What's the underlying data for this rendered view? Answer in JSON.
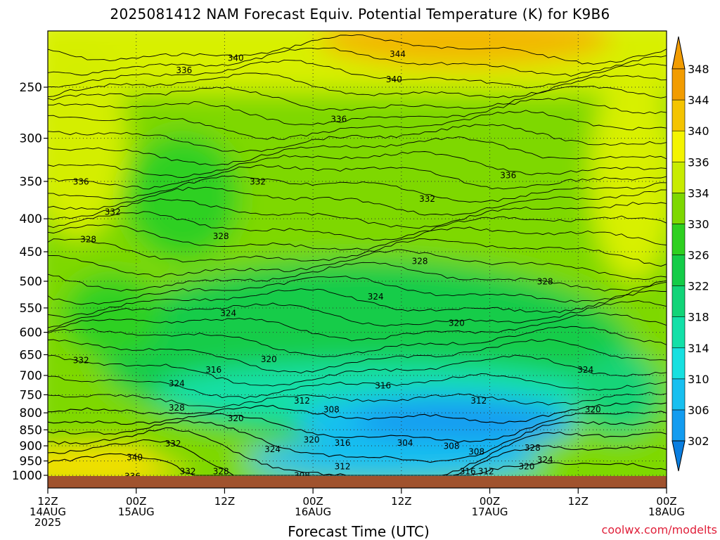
{
  "title": "2025081412 NAM Forecast Equiv. Potential Temperature (K) for K9B6",
  "credit": "coolwx.com/modelts",
  "chart_data": {
    "type": "heatmap",
    "title": "2025081412 NAM Forecast Equiv. Potential Temperature (K) for K9B6",
    "xlabel": "Forecast Time (UTC)",
    "ylabel": "",
    "x_ticks": [
      {
        "hours": 0,
        "line1": "12Z",
        "line2": "14AUG",
        "line3": "2025"
      },
      {
        "hours": 12,
        "line1": "00Z",
        "line2": "15AUG",
        "line3": ""
      },
      {
        "hours": 24,
        "line1": "12Z",
        "line2": "",
        "line3": ""
      },
      {
        "hours": 36,
        "line1": "00Z",
        "line2": "16AUG",
        "line3": ""
      },
      {
        "hours": 48,
        "line1": "12Z",
        "line2": "",
        "line3": ""
      },
      {
        "hours": 60,
        "line1": "00Z",
        "line2": "17AUG",
        "line3": ""
      },
      {
        "hours": 72,
        "line1": "12Z",
        "line2": "",
        "line3": ""
      },
      {
        "hours": 84,
        "line1": "00Z",
        "line2": "18AUG",
        "line3": ""
      }
    ],
    "xlim": [
      0,
      84
    ],
    "y_ticks": [
      250,
      300,
      350,
      400,
      450,
      500,
      550,
      600,
      650,
      700,
      750,
      800,
      850,
      900,
      950,
      1000
    ],
    "ylim": [
      200,
      1010
    ],
    "y_scale": "log-pressure (inverted)",
    "grid": true,
    "colorbar": {
      "levels": [
        302,
        306,
        310,
        314,
        318,
        322,
        326,
        330,
        334,
        336,
        340,
        344,
        348
      ],
      "colors": [
        "#0a7ee0",
        "#139cf0",
        "#18c0f0",
        "#17e0e0",
        "#13e0a8",
        "#12d478",
        "#14cc48",
        "#2ed020",
        "#7ed800",
        "#c8ec00",
        "#f4f400",
        "#f4c400",
        "#f29c00"
      ]
    },
    "contour_labels": [
      {
        "value": "340",
        "hours": 25.5,
        "p": 225
      },
      {
        "value": "344",
        "hours": 47.5,
        "p": 222
      },
      {
        "value": "336",
        "hours": 18.5,
        "p": 235
      },
      {
        "value": "340",
        "hours": 47.0,
        "p": 243
      },
      {
        "value": "336",
        "hours": 39.5,
        "p": 280
      },
      {
        "value": "336",
        "hours": 4.5,
        "p": 350
      },
      {
        "value": "332",
        "hours": 28.5,
        "p": 350
      },
      {
        "value": "336",
        "hours": 62.5,
        "p": 342
      },
      {
        "value": "332",
        "hours": 51.5,
        "p": 372
      },
      {
        "value": "332",
        "hours": 8.8,
        "p": 390
      },
      {
        "value": "328",
        "hours": 5.5,
        "p": 430
      },
      {
        "value": "328",
        "hours": 23.5,
        "p": 425
      },
      {
        "value": "328",
        "hours": 50.5,
        "p": 465
      },
      {
        "value": "328",
        "hours": 67.5,
        "p": 500
      },
      {
        "value": "324",
        "hours": 44.5,
        "p": 528
      },
      {
        "value": "324",
        "hours": 24.5,
        "p": 560
      },
      {
        "value": "320",
        "hours": 55.5,
        "p": 580
      },
      {
        "value": "332",
        "hours": 4.5,
        "p": 662
      },
      {
        "value": "320",
        "hours": 30.0,
        "p": 660
      },
      {
        "value": "316",
        "hours": 22.5,
        "p": 685
      },
      {
        "value": "324",
        "hours": 17.5,
        "p": 720
      },
      {
        "value": "316",
        "hours": 45.5,
        "p": 725
      },
      {
        "value": "324",
        "hours": 73.0,
        "p": 685
      },
      {
        "value": "312",
        "hours": 34.5,
        "p": 765
      },
      {
        "value": "312",
        "hours": 58.5,
        "p": 765
      },
      {
        "value": "328",
        "hours": 17.5,
        "p": 785
      },
      {
        "value": "308",
        "hours": 38.5,
        "p": 790
      },
      {
        "value": "320",
        "hours": 74.0,
        "p": 790
      },
      {
        "value": "320",
        "hours": 25.5,
        "p": 815
      },
      {
        "value": "320",
        "hours": 35.8,
        "p": 880
      },
      {
        "value": "316",
        "hours": 40.0,
        "p": 890
      },
      {
        "value": "304",
        "hours": 48.5,
        "p": 890
      },
      {
        "value": "308",
        "hours": 54.8,
        "p": 900
      },
      {
        "value": "332",
        "hours": 17.0,
        "p": 892
      },
      {
        "value": "324",
        "hours": 30.5,
        "p": 910
      },
      {
        "value": "328",
        "hours": 65.8,
        "p": 905
      },
      {
        "value": "308",
        "hours": 58.2,
        "p": 918
      },
      {
        "value": "340",
        "hours": 11.8,
        "p": 937
      },
      {
        "value": "324",
        "hours": 67.5,
        "p": 945
      },
      {
        "value": "320",
        "hours": 65.0,
        "p": 968
      },
      {
        "value": "312",
        "hours": 40.0,
        "p": 968
      },
      {
        "value": "332",
        "hours": 19.0,
        "p": 985
      },
      {
        "value": "328",
        "hours": 23.5,
        "p": 985
      },
      {
        "value": "316",
        "hours": 57.0,
        "p": 985
      },
      {
        "value": "312",
        "hours": 59.5,
        "p": 985
      },
      {
        "value": "336",
        "hours": 11.5,
        "p": 1003
      },
      {
        "value": "308",
        "hours": 34.5,
        "p": 1000
      }
    ]
  },
  "x_axis_label": "Forecast Time (UTC)"
}
